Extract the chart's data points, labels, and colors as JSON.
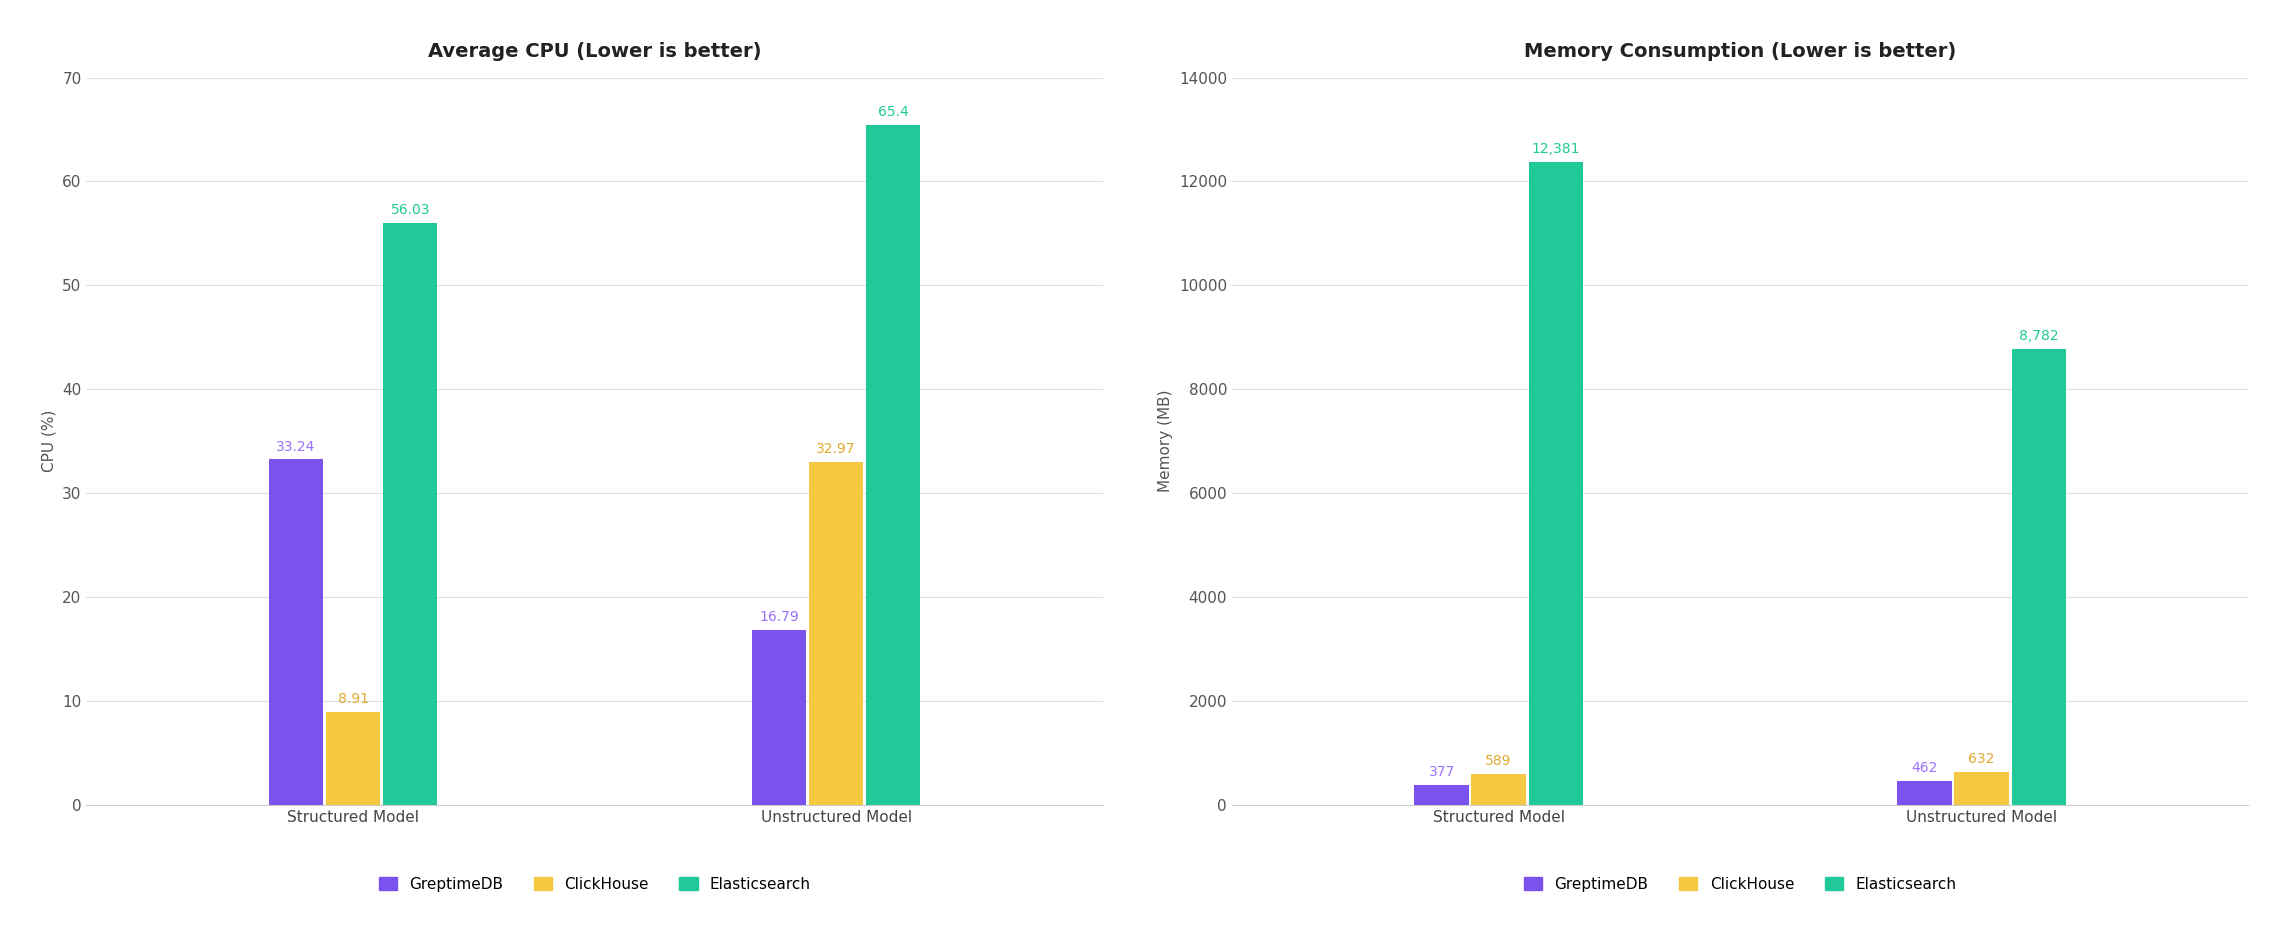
{
  "cpu_title": "Average CPU (Lower is better)",
  "cpu_ylabel": "CPU (%)",
  "cpu_ylim": [
    0,
    70
  ],
  "cpu_yticks": [
    0,
    10,
    20,
    30,
    40,
    50,
    60,
    70
  ],
  "cpu_data": {
    "Structured Model": {
      "GreptimeDB": 33.24,
      "ClickHouse": 8.91,
      "Elasticsearch": 56.03
    },
    "Unstructured Model": {
      "GreptimeDB": 16.79,
      "ClickHouse": 32.97,
      "Elasticsearch": 65.4
    }
  },
  "mem_title": "Memory Consumption (Lower is better)",
  "mem_ylabel": "Memory (MB)",
  "mem_ylim": [
    0,
    14000
  ],
  "mem_yticks": [
    0,
    2000,
    4000,
    6000,
    8000,
    10000,
    12000,
    14000
  ],
  "mem_data": {
    "Structured Model": {
      "GreptimeDB": 377,
      "ClickHouse": 589,
      "Elasticsearch": 12381
    },
    "Unstructured Model": {
      "GreptimeDB": 462,
      "ClickHouse": 632,
      "Elasticsearch": 8782
    }
  },
  "categories": [
    "Structured Model",
    "Unstructured Model"
  ],
  "series": [
    "GreptimeDB",
    "ClickHouse",
    "Elasticsearch"
  ],
  "colors": {
    "GreptimeDB": "#7B52EE",
    "ClickHouse": "#F5C842",
    "Elasticsearch": "#20C997"
  },
  "label_colors": {
    "GreptimeDB": "#9B72FF",
    "ClickHouse": "#E0AA30",
    "Elasticsearch": "#20C997"
  },
  "background_color": "#FFFFFF",
  "grid_color": "#E0E0E0",
  "title_fontsize": 14,
  "label_fontsize": 11,
  "tick_fontsize": 11,
  "annotation_fontsize": 10,
  "legend_fontsize": 11,
  "bar_width": 0.18,
  "group_centers": [
    1.0,
    2.6
  ]
}
